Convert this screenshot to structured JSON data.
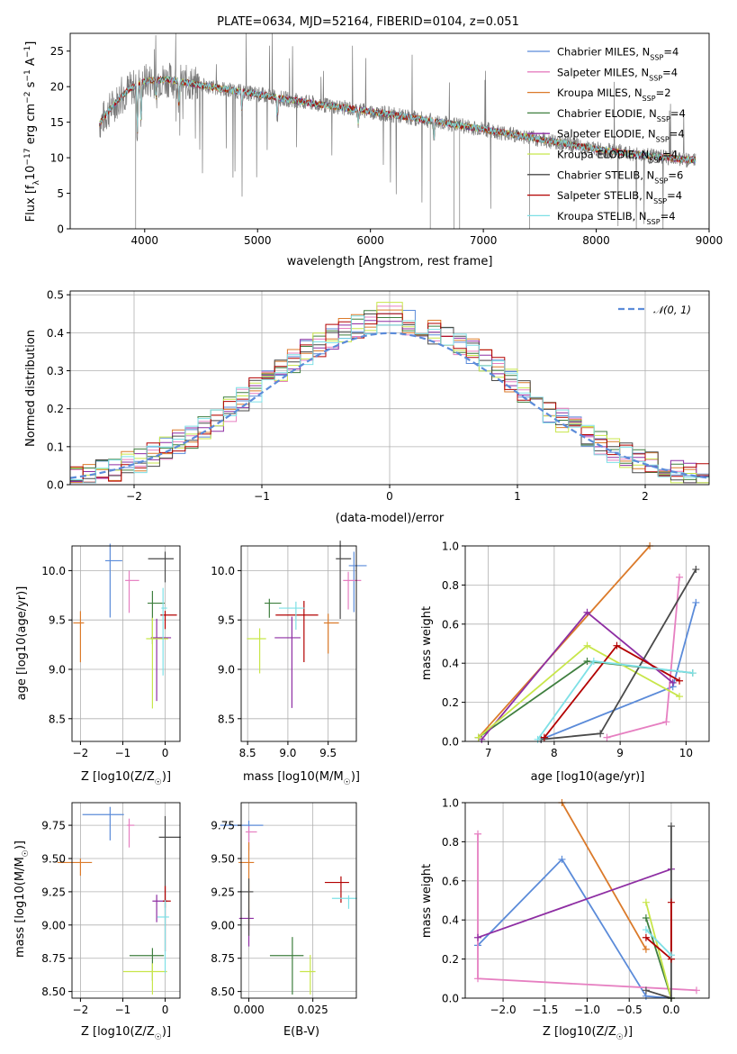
{
  "colors": [
    "#5b8bd9",
    "#e67fc1",
    "#db7a2a",
    "#3f7f3f",
    "#8e2ea3",
    "#c8e64a",
    "#4a4a4a",
    "#b30000",
    "#7ee0e6"
  ],
  "chart_data": [
    {
      "type": "line",
      "title": "PLATE=0634, MJD=52164, FIBERID=0104, z=0.051",
      "xlabel": "wavelength [Angstrom, rest frame]",
      "ylabel": "Flux [f$\\lambda$10$^{-17}$ erg cm$^{-2}$ s$^{-1}$ A$^{-1}$]",
      "ylabel_parts": [
        "Flux [f",
        "λ",
        "10",
        "−17",
        " erg cm",
        "−2",
        " s",
        "−1",
        " A",
        "−1",
        "]"
      ],
      "xlim": [
        3340,
        9000
      ],
      "ylim": [
        0,
        27.5
      ],
      "xticks": [
        4000,
        5000,
        6000,
        7000,
        8000,
        9000
      ],
      "yticks": [
        0,
        5,
        10,
        15,
        20,
        25
      ],
      "legend": [
        {
          "base": "Chabrier MILES, N",
          "sub": "SSP",
          "tail": "=4"
        },
        {
          "base": "Salpeter MILES, N",
          "sub": "SSP",
          "tail": "=4"
        },
        {
          "base": "Kroupa MILES, N",
          "sub": "SSP",
          "tail": "=2"
        },
        {
          "base": "Chabrier ELODIE, N",
          "sub": "SSP",
          "tail": "=4"
        },
        {
          "base": "Salpeter ELODIE, N",
          "sub": "SSP",
          "tail": "=4"
        },
        {
          "base": "Kroupa ELODIE, N",
          "sub": "SSP",
          "tail": "=4"
        },
        {
          "base": "Chabrier STELIB, N",
          "sub": "SSP",
          "tail": "=6"
        },
        {
          "base": "Salpeter STELIB, N",
          "sub": "SSP",
          "tail": "=4"
        },
        {
          "base": "Kroupa STELIB, N",
          "sub": "SSP",
          "tail": "=4"
        }
      ],
      "continuum": {
        "x": [
          3600,
          3700,
          3850,
          4000,
          4200,
          4500,
          5000,
          5500,
          6000,
          6500,
          7000,
          7500,
          8000,
          8500,
          8900
        ],
        "y": [
          14.8,
          17.0,
          19.5,
          20.8,
          21.0,
          20.2,
          18.9,
          17.6,
          16.5,
          15.3,
          14.0,
          12.6,
          11.2,
          10.2,
          9.6
        ]
      },
      "absorption_lines": [
        [
          3934,
          8
        ],
        [
          3968,
          6
        ],
        [
          4102,
          3
        ],
        [
          4304,
          4
        ],
        [
          4861,
          3
        ],
        [
          5175,
          3
        ],
        [
          5893,
          2
        ],
        [
          6563,
          3
        ]
      ]
    },
    {
      "type": "histogram",
      "xlabel": "(data-model)/error",
      "ylabel": "Normed distribution",
      "xlim": [
        -2.5,
        2.5
      ],
      "ylim": [
        0,
        0.51
      ],
      "xticks": [
        -2,
        -1,
        0,
        1,
        2
      ],
      "yticks": [
        0.0,
        0.1,
        0.2,
        0.3,
        0.4,
        0.5
      ],
      "legend": [
        "𝒩(0, 1)"
      ],
      "bin_width": 0.1,
      "peak_values": [
        0.45,
        0.47,
        0.46,
        0.44,
        0.43,
        0.48,
        0.42,
        0.45,
        0.42
      ]
    },
    {
      "type": "scatter",
      "xlabel": "Z [log10(Z/Z☉)]",
      "ylabel": "age  [log10(age/yr)]",
      "xlim": [
        -2.2,
        0.35
      ],
      "ylim": [
        8.27,
        10.25
      ],
      "xticks": [
        -2,
        -1,
        0
      ],
      "yticks": [
        8.5,
        9.0,
        9.5,
        10.0
      ],
      "points": [
        [
          -1.3,
          10.1
        ],
        [
          -0.85,
          9.9
        ],
        [
          -2.0,
          9.47
        ],
        [
          -0.3,
          9.67
        ],
        [
          -0.2,
          9.32
        ],
        [
          -0.3,
          9.31
        ],
        [
          0.0,
          10.12
        ],
        [
          0.0,
          9.55
        ],
        [
          -0.05,
          9.62
        ]
      ]
    },
    {
      "type": "scatter",
      "xlabel": "mass [log10(M/M☉)]",
      "ylabel": "",
      "xlim": [
        8.42,
        9.85
      ],
      "ylim": [
        8.27,
        10.25
      ],
      "xticks": [
        8.5,
        9.0,
        9.5
      ],
      "yticks": [
        8.5,
        9.0,
        9.5,
        10.0
      ],
      "points": [
        [
          9.82,
          10.05
        ],
        [
          9.75,
          9.9
        ],
        [
          9.5,
          9.47
        ],
        [
          8.77,
          9.67
        ],
        [
          9.05,
          9.32
        ],
        [
          8.65,
          9.31
        ],
        [
          9.65,
          10.12
        ],
        [
          9.2,
          9.55
        ],
        [
          9.1,
          9.62
        ]
      ]
    },
    {
      "type": "line",
      "xlabel": "age  [log10(age/yr)]",
      "ylabel": "mass weight",
      "xlim": [
        6.65,
        10.35
      ],
      "ylim": [
        0,
        1.0
      ],
      "xticks": [
        7,
        8,
        9,
        10
      ],
      "yticks": [
        0.0,
        0.2,
        0.4,
        0.6,
        0.8,
        1.0
      ],
      "series": [
        {
          "x": [
            7.8,
            9.8,
            10.15
          ],
          "y": [
            0.01,
            0.28,
            0.71
          ]
        },
        {
          "x": [
            8.8,
            9.7,
            9.9
          ],
          "y": [
            0.02,
            0.1,
            0.84
          ]
        },
        {
          "x": [
            6.85,
            9.45
          ],
          "y": [
            0.02,
            1.0
          ]
        },
        {
          "x": [
            6.85,
            8.5,
            10.1
          ],
          "y": [
            0.02,
            0.41,
            0.35
          ]
        },
        {
          "x": [
            6.9,
            8.5,
            9.8
          ],
          "y": [
            0.01,
            0.66,
            0.3
          ]
        },
        {
          "x": [
            6.85,
            8.5,
            9.9
          ],
          "y": [
            0.02,
            0.49,
            0.23
          ]
        },
        {
          "x": [
            7.8,
            8.7,
            10.15
          ],
          "y": [
            0.01,
            0.04,
            0.88
          ]
        },
        {
          "x": [
            7.85,
            8.95,
            9.9
          ],
          "y": [
            0.02,
            0.49,
            0.31
          ]
        },
        {
          "x": [
            7.75,
            8.6,
            10.1
          ],
          "y": [
            0.01,
            0.41,
            0.35
          ]
        }
      ]
    },
    {
      "type": "scatter",
      "xlabel": "Z [log10(Z/Z☉)]",
      "ylabel": "mass [log10(M/M☉)]",
      "xlim": [
        -2.2,
        0.35
      ],
      "ylim": [
        8.45,
        9.92
      ],
      "xticks": [
        -2,
        -1,
        0
      ],
      "yticks": [
        8.5,
        8.75,
        9.0,
        9.25,
        9.5,
        9.75
      ],
      "points": [
        [
          -1.3,
          9.83
        ],
        [
          -0.85,
          9.75
        ],
        [
          -2.0,
          9.47
        ],
        [
          -0.3,
          8.77
        ],
        [
          -0.2,
          9.18
        ],
        [
          -0.3,
          8.65
        ],
        [
          0.0,
          9.66
        ],
        [
          0.0,
          9.18
        ],
        [
          0.0,
          9.06
        ]
      ]
    },
    {
      "type": "scatter",
      "xlabel": "E(B-V)",
      "ylabel": "",
      "xlim": [
        -0.003,
        0.042
      ],
      "ylim": [
        8.45,
        9.92
      ],
      "xticks": [
        0.0,
        0.025
      ],
      "yticks": [
        8.5,
        8.75,
        9.0,
        9.25,
        9.5,
        9.75
      ],
      "points": [
        [
          0.0,
          9.75
        ],
        [
          0.0,
          9.7
        ],
        [
          0.0,
          9.47
        ],
        [
          0.017,
          8.77
        ],
        [
          0.0,
          9.05
        ],
        [
          0.024,
          8.65
        ],
        [
          0.0,
          9.25
        ],
        [
          0.036,
          9.32
        ],
        [
          0.039,
          9.2
        ]
      ]
    },
    {
      "type": "line",
      "xlabel": "Z [log10(Z/Z☉)]",
      "ylabel": "mass weight",
      "xlim": [
        -2.45,
        0.45
      ],
      "ylim": [
        0,
        1.0
      ],
      "xticks": [
        -2.0,
        -1.5,
        -1.0,
        -0.5,
        0.0
      ],
      "yticks": [
        0.0,
        0.2,
        0.4,
        0.6,
        0.8,
        1.0
      ],
      "series": [
        {
          "x": [
            -2.3,
            -1.3,
            -0.3,
            0.0
          ],
          "y": [
            0.27,
            0.71,
            0.01,
            0.0
          ]
        },
        {
          "x": [
            -2.3,
            -2.3,
            0.3
          ],
          "y": [
            0.84,
            0.1,
            0.04
          ]
        },
        {
          "x": [
            -1.3,
            -0.3
          ],
          "y": [
            1.0,
            0.25
          ]
        },
        {
          "x": [
            -0.3,
            0.0
          ],
          "y": [
            0.41,
            0.0
          ]
        },
        {
          "x": [
            -2.3,
            0.0
          ],
          "y": [
            0.31,
            0.66
          ]
        },
        {
          "x": [
            -0.3,
            0.0
          ],
          "y": [
            0.49,
            0.0
          ]
        },
        {
          "x": [
            -0.3,
            0.0,
            0.0
          ],
          "y": [
            0.04,
            0.0,
            0.88
          ]
        },
        {
          "x": [
            -0.3,
            0.0,
            0.0
          ],
          "y": [
            0.31,
            0.2,
            0.49
          ]
        },
        {
          "x": [
            -0.3,
            0.0
          ],
          "y": [
            0.35,
            0.22
          ]
        }
      ]
    }
  ]
}
